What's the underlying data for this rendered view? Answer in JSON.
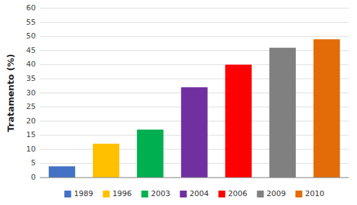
{
  "chart_data": {
    "type": "bar",
    "categories": [
      "1989",
      "1996",
      "2003",
      "2004",
      "2006",
      "2009",
      "2010"
    ],
    "values": [
      4,
      12,
      17,
      32,
      40,
      46,
      49
    ],
    "colors": [
      "#4472c4",
      "#ffc000",
      "#00b050",
      "#7030a0",
      "#ff0000",
      "#808080",
      "#e36c09"
    ],
    "ylabel": "Tratamento (%)",
    "ylim": [
      0,
      60
    ],
    "yticks": [
      0,
      5,
      10,
      15,
      20,
      25,
      30,
      35,
      40,
      45,
      50,
      55,
      60
    ],
    "grid": true,
    "legend": "bottom",
    "tick_labels": "y"
  }
}
